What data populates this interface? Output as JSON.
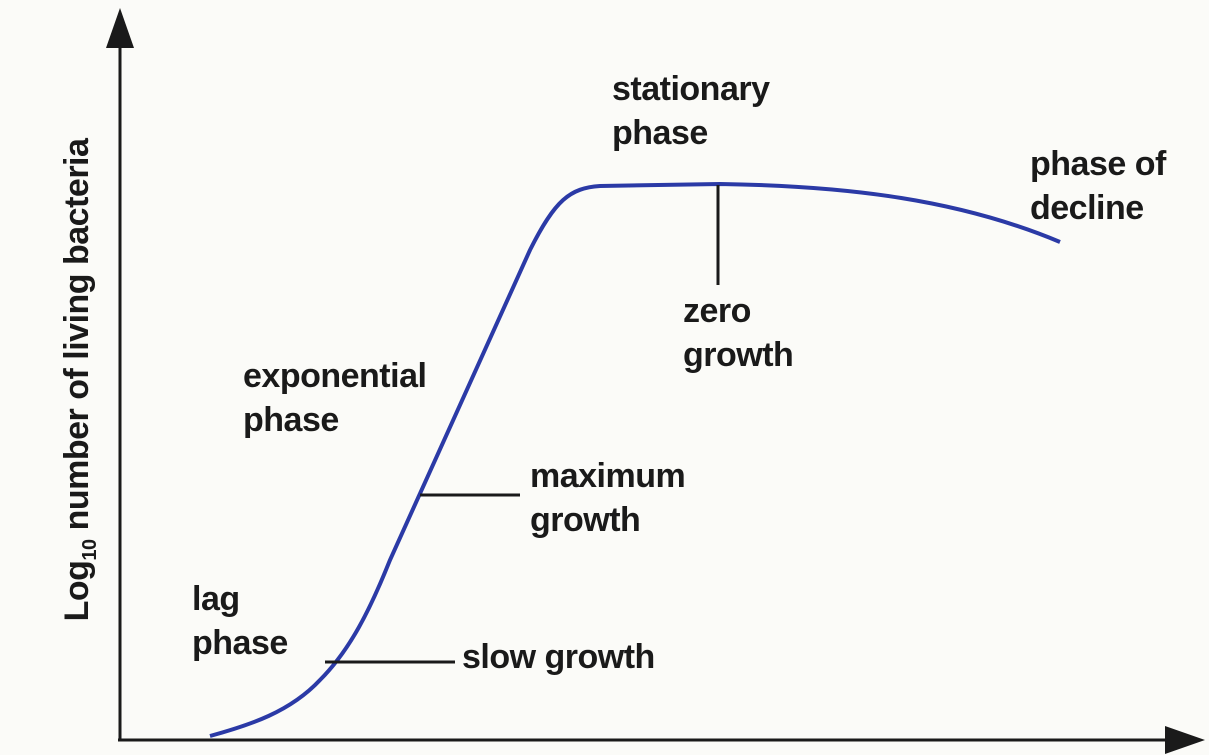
{
  "axes": {
    "y_label": {
      "base": "Log",
      "subscript": "10",
      "rest": " number of living bacteria"
    }
  },
  "labels": [
    {
      "lines": [
        "stationary",
        "phase"
      ]
    },
    {
      "lines": [
        "phase of",
        "decline"
      ]
    },
    {
      "lines": [
        "zero",
        "growth"
      ]
    },
    {
      "lines": [
        "exponential",
        "phase"
      ]
    },
    {
      "lines": [
        "maximum",
        "growth"
      ]
    },
    {
      "lines": [
        "lag",
        "phase"
      ]
    },
    {
      "lines": [
        "slow growth"
      ]
    }
  ]
}
